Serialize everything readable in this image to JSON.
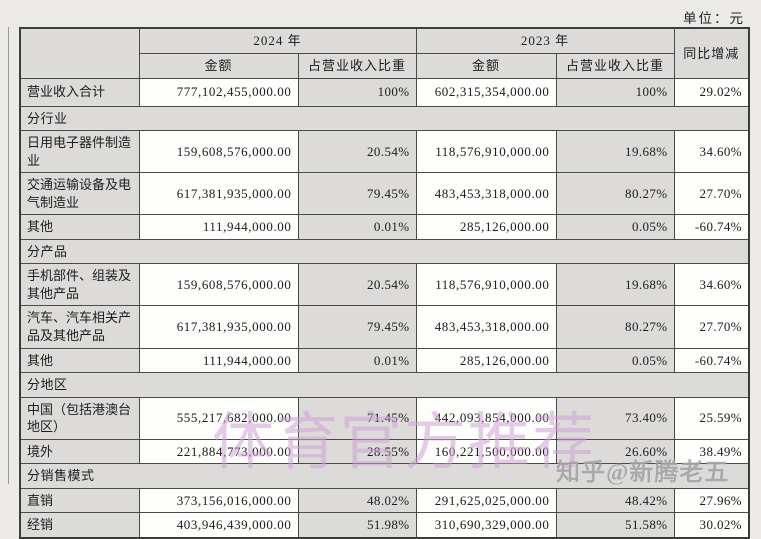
{
  "unit_label": "单位：元",
  "table": {
    "header": {
      "year_2024": "2024 年",
      "year_2023": "2023 年",
      "amount": "金额",
      "pct": "占营业收入比重",
      "yoy": "同比增减"
    },
    "rows": [
      {
        "kind": "total",
        "label": "营业收入合计",
        "amount_2024": "777,102,455,000.00",
        "pct_2024": "100%",
        "amount_2023": "602,315,354,000.00",
        "pct_2023": "100%",
        "yoy": "29.02%"
      },
      {
        "kind": "section",
        "label": "分行业"
      },
      {
        "kind": "data",
        "label": "日用电子器件制造业",
        "amount_2024": "159,608,576,000.00",
        "pct_2024": "20.54%",
        "amount_2023": "118,576,910,000.00",
        "pct_2023": "19.68%",
        "yoy": "34.60%"
      },
      {
        "kind": "data",
        "label": "交通运输设备及电气制造业",
        "amount_2024": "617,381,935,000.00",
        "pct_2024": "79.45%",
        "amount_2023": "483,453,318,000.00",
        "pct_2023": "80.27%",
        "yoy": "27.70%"
      },
      {
        "kind": "data",
        "label": "其他",
        "amount_2024": "111,944,000.00",
        "pct_2024": "0.01%",
        "amount_2023": "285,126,000.00",
        "pct_2023": "0.05%",
        "yoy": "-60.74%"
      },
      {
        "kind": "section",
        "label": "分产品"
      },
      {
        "kind": "data",
        "label": "手机部件、组装及其他产品",
        "amount_2024": "159,608,576,000.00",
        "pct_2024": "20.54%",
        "amount_2023": "118,576,910,000.00",
        "pct_2023": "19.68%",
        "yoy": "34.60%"
      },
      {
        "kind": "data",
        "label": "汽车、汽车相关产品及其他产品",
        "amount_2024": "617,381,935,000.00",
        "pct_2024": "79.45%",
        "amount_2023": "483,453,318,000.00",
        "pct_2023": "80.27%",
        "yoy": "27.70%"
      },
      {
        "kind": "data",
        "label": "其他",
        "amount_2024": "111,944,000.00",
        "pct_2024": "0.01%",
        "amount_2023": "285,126,000.00",
        "pct_2023": "0.05%",
        "yoy": "-60.74%"
      },
      {
        "kind": "section",
        "label": "分地区"
      },
      {
        "kind": "data",
        "label": "中国（包括港澳台地区）",
        "amount_2024": "555,217,682,000.00",
        "pct_2024": "71.45%",
        "amount_2023": "442,093,854,000.00",
        "pct_2023": "73.40%",
        "yoy": "25.59%"
      },
      {
        "kind": "data",
        "label": "境外",
        "amount_2024": "221,884,773,000.00",
        "pct_2024": "28.55%",
        "amount_2023": "160,221,500,000.00",
        "pct_2023": "26.60%",
        "yoy": "38.49%"
      },
      {
        "kind": "section",
        "label": "分销售模式"
      },
      {
        "kind": "data",
        "label": "直销",
        "amount_2024": "373,156,016,000.00",
        "pct_2024": "48.02%",
        "amount_2023": "291,625,025,000.00",
        "pct_2023": "48.42%",
        "yoy": "27.96%"
      },
      {
        "kind": "data",
        "label": "经销",
        "amount_2024": "403,946,439,000.00",
        "pct_2024": "51.98%",
        "amount_2023": "310,690,329,000.00",
        "pct_2023": "51.58%",
        "yoy": "30.02%"
      }
    ]
  },
  "watermarks": {
    "pink": "体育官方推荐",
    "gray": "知乎@新腾老五"
  },
  "colors": {
    "page_bg": "#ebeae8",
    "cell_gray": "#dcdbd9",
    "cell_white": "#fdfdfb",
    "border": "#4a4a48",
    "watermark_pink": "#ce9fd4",
    "watermark_gray": "#7a7a7a"
  }
}
